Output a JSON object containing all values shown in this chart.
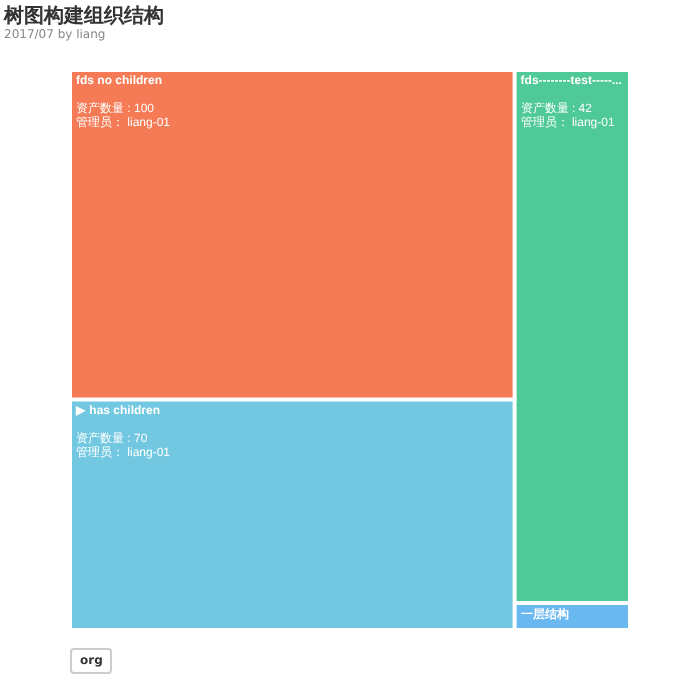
{
  "chart_data": {
    "type": "other",
    "title": "树图构建组织结构",
    "subtitle": "2017/07 by liang",
    "categories": [
      "fds no children",
      "▶ has children",
      "fds--------test-----...",
      "一层结构"
    ],
    "values": [
      100,
      70,
      42,
      null
    ],
    "colors": [
      "#f47b56",
      "#72c8e0",
      "#4ec997",
      "#6ab8f0"
    ],
    "value_labels": [
      "资产数量 : 100",
      "资产数量 : 70",
      "资产数量 : 42",
      null
    ],
    "annotations": [
      {
        "text": "管理员：  liang-01",
        "x": "fds no children"
      },
      {
        "text": "管理员：  liang-01",
        "x": "▶ has children"
      },
      {
        "text": "管理员：  liang-01",
        "x": "fds--------test-----..."
      },
      "org"
    ]
  }
}
